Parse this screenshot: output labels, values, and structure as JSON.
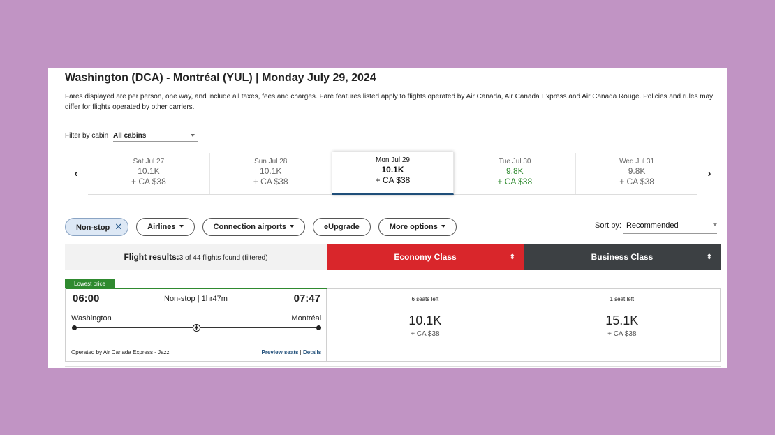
{
  "route_title": "Washington (DCA) - Montréal (YUL)  |  Monday July 29, 2024",
  "disclaimer": "Fares displayed are per person, one way, and include all taxes, fees and charges. Fare features listed apply to flights operated by Air Canada, Air Canada Express and Air Canada Rouge. Policies and rules may differ for flights operated by other carriers.",
  "cabin_filter": {
    "label": "Filter by cabin",
    "value": "All cabins"
  },
  "date_nav": {
    "prev_icon": "‹",
    "next_icon": "›",
    "dates": [
      {
        "label": "Sat Jul 27",
        "points": "10.1K",
        "cash": "+ CA $38",
        "state": "normal"
      },
      {
        "label": "Sun Jul 28",
        "points": "10.1K",
        "cash": "+ CA $38",
        "state": "normal"
      },
      {
        "label": "Mon Jul 29",
        "points": "10.1K",
        "cash": "+ CA $38",
        "state": "active"
      },
      {
        "label": "Tue Jul 30",
        "points": "9.8K",
        "cash": "+ CA $38",
        "state": "green"
      },
      {
        "label": "Wed Jul 31",
        "points": "9.8K",
        "cash": "+ CA $38",
        "state": "normal"
      }
    ]
  },
  "filters": {
    "nonstop": "Non-stop",
    "nonstop_clear": "✕",
    "airlines": "Airlines",
    "connection_airports": "Connection airports",
    "eupgrade": "eUpgrade",
    "more_options": "More options"
  },
  "sort": {
    "label": "Sort by:",
    "value": "Recommended"
  },
  "results_header": {
    "label": "Flight results:",
    "count": "3 of 44 flights found (filtered)",
    "economy": "Economy Class",
    "business": "Business Class",
    "sort_icon": "⇕"
  },
  "flight": {
    "tag": "Lowest price",
    "depart_time": "06:00",
    "stops_duration": "Non-stop | 1hr47m",
    "arrive_time": "07:47",
    "origin": "Washington",
    "destination": "Montréal",
    "operator": "Operated by Air Canada Express - Jazz",
    "preview_seats": "Preview seats",
    "separator": " | ",
    "details": "Details",
    "economy": {
      "seats": "6 seats left",
      "points": "10.1K",
      "cash": "+ CA $38"
    },
    "business": {
      "seats": "1 seat left",
      "points": "15.1K",
      "cash": "+ CA $38"
    }
  },
  "colors": {
    "background": "#c194c4",
    "economy_red": "#d9262b",
    "business_dark": "#3c4043",
    "lowest_green": "#2f8a2f",
    "active_underline": "#1f4e79"
  }
}
